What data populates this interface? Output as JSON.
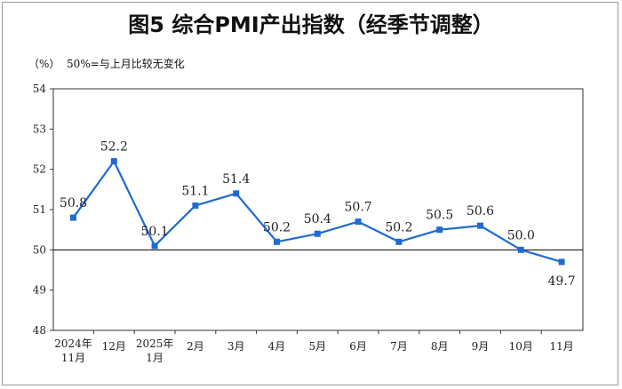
{
  "title": "图5  综合PMI产出指数（经季节调整）",
  "unit_label": "（%）",
  "note": "50%=与上月比较无变化",
  "colors": {
    "line": "#1f6bd1",
    "axis": "#333333",
    "baseline": "#000000"
  },
  "chart_data": {
    "type": "line",
    "categories": [
      [
        "2024年",
        "11月"
      ],
      [
        "12月"
      ],
      [
        "2025年",
        "1月"
      ],
      [
        "2月"
      ],
      [
        "3月"
      ],
      [
        "4月"
      ],
      [
        "5月"
      ],
      [
        "6月"
      ],
      [
        "7月"
      ],
      [
        "8月"
      ],
      [
        "9月"
      ],
      [
        "10月"
      ],
      [
        "11月"
      ]
    ],
    "series": [
      {
        "values": [
          50.8,
          52.2,
          50.1,
          51.1,
          51.4,
          50.2,
          50.4,
          50.7,
          50.2,
          50.5,
          50.6,
          50.0,
          49.7
        ]
      }
    ],
    "data_labels": [
      "50.8",
      "52.2",
      "50.1",
      "51.1",
      "51.4",
      "50.2",
      "50.4",
      "50.7",
      "50.2",
      "50.5",
      "50.6",
      "50.0",
      "49.7"
    ],
    "ylim": [
      48,
      54
    ],
    "yticks": [
      48,
      49,
      50,
      51,
      52,
      53,
      54
    ],
    "reference_line": 50,
    "grid": false,
    "marker": "square"
  }
}
